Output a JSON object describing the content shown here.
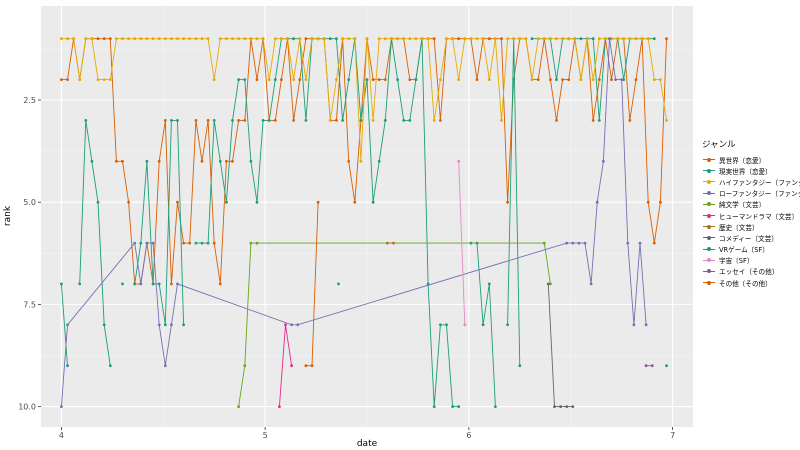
{
  "chart_data": {
    "type": "line",
    "xlabel": "date",
    "ylabel": "rank",
    "x_ticks": [
      "4",
      "5",
      "6",
      "7"
    ],
    "y_ticks": [
      "2.5",
      "5.0",
      "7.5",
      "10.0"
    ],
    "xlim": [
      3.9,
      7.1
    ],
    "ylim_reversed": [
      0.2,
      10.5
    ],
    "grid": true,
    "legend_position": "right",
    "legend_title": "ジャンル",
    "series": [
      {
        "name": "異世界〔恋愛〕",
        "color": "#D95F02",
        "x": [
          4.0,
          4.03,
          4.06,
          4.09,
          4.12,
          4.15,
          4.18,
          4.21,
          4.24,
          4.27,
          4.3,
          4.33,
          4.36,
          4.39,
          4.42,
          4.45,
          4.48,
          4.51,
          4.54,
          4.57,
          4.6,
          4.63,
          4.66,
          4.69,
          4.72,
          4.75,
          4.78,
          4.81,
          4.84,
          4.87,
          4.9,
          4.93,
          4.96,
          4.99,
          5.02,
          5.05,
          5.08,
          5.11,
          5.14,
          5.17,
          5.2,
          5.23,
          5.26,
          5.29,
          5.32,
          5.35,
          5.38,
          5.41,
          5.44,
          5.47,
          5.5,
          5.53,
          5.56,
          5.59,
          5.62,
          5.65,
          5.68,
          5.71,
          5.74,
          5.77,
          5.8,
          5.83,
          5.86,
          5.89,
          5.92,
          5.95,
          5.98,
          6.01,
          6.04,
          6.07,
          6.1,
          6.13,
          6.16,
          6.19,
          6.22,
          6.25,
          6.28,
          6.31,
          6.34,
          6.37,
          6.4,
          6.43,
          6.46,
          6.49,
          6.52,
          6.55,
          6.58,
          6.61,
          6.64,
          6.67,
          6.7,
          6.73,
          6.76,
          6.79,
          6.82,
          6.85,
          6.88,
          6.91,
          6.94,
          6.97
        ],
        "y": [
          2,
          2,
          1,
          2,
          1,
          1,
          1,
          1,
          1,
          4,
          4,
          5,
          7,
          7,
          6,
          7,
          4,
          3,
          7,
          5,
          6,
          6,
          3,
          4,
          3,
          6,
          7,
          4,
          4,
          3,
          3,
          1,
          2,
          1,
          3,
          3,
          2,
          1,
          3,
          2,
          1,
          1,
          1,
          1,
          3,
          3,
          1,
          4,
          5,
          3,
          1,
          2,
          2,
          2,
          1,
          1,
          1,
          2,
          2,
          1,
          1,
          1,
          3,
          1,
          1,
          1,
          1,
          1,
          2,
          1,
          1,
          1,
          1,
          5,
          2,
          1,
          1,
          2,
          2,
          1,
          2,
          3,
          2,
          2,
          1,
          2,
          1,
          3,
          2,
          1,
          2,
          1,
          1,
          3,
          2,
          1,
          5,
          6,
          5,
          1
        ]
      },
      {
        "name": "現実世界〔恋愛〕",
        "color": "#1B9E77",
        "x": [
          4.0,
          4.03,
          4.06,
          4.09,
          4.12,
          4.15,
          4.18,
          4.21,
          4.24,
          4.27,
          4.3,
          4.33,
          4.36,
          4.39,
          4.42,
          4.45,
          4.48,
          4.51,
          4.54,
          4.57,
          4.6,
          4.63,
          4.66,
          4.69,
          4.72,
          4.75,
          4.78,
          4.81,
          4.84,
          4.87,
          4.9,
          4.93,
          4.96,
          4.99,
          5.02,
          5.05,
          5.08,
          5.11,
          5.14,
          5.17,
          5.2,
          5.23,
          5.26,
          5.29,
          5.32,
          5.35,
          5.38,
          5.41,
          5.44,
          5.47,
          5.5,
          5.53,
          5.56,
          5.59,
          5.62,
          5.65,
          5.68,
          5.71,
          5.74,
          5.77,
          5.8,
          5.83,
          5.86,
          5.89,
          5.92,
          5.95,
          5.98,
          6.01,
          6.04,
          6.07,
          6.1,
          6.13,
          6.16,
          6.19,
          6.22,
          6.25,
          6.28,
          6.31,
          6.34,
          6.37,
          6.4,
          6.43,
          6.46,
          6.49,
          6.52,
          6.55,
          6.58,
          6.61,
          6.64,
          6.67,
          6.7,
          6.73,
          6.76,
          6.79,
          6.82,
          6.85,
          6.88,
          6.91,
          6.94,
          6.97
        ],
        "y": [
          7,
          9,
          null,
          7,
          3,
          4,
          5,
          8,
          9,
          null,
          7,
          null,
          7,
          6,
          4,
          7,
          7,
          8,
          3,
          3,
          8,
          null,
          6,
          6,
          6,
          3,
          4,
          5,
          3,
          2,
          2,
          4,
          5,
          3,
          3,
          2,
          1,
          1,
          1,
          1,
          3,
          1,
          1,
          1,
          1,
          1,
          3,
          2,
          1,
          3,
          2,
          5,
          4,
          3,
          1,
          2,
          3,
          3,
          2,
          1,
          7,
          10,
          8,
          8,
          10,
          10,
          null,
          6,
          6,
          8,
          7,
          10,
          null,
          8,
          1,
          9,
          null,
          1,
          1,
          1,
          1,
          2,
          1,
          1,
          1,
          1,
          1,
          1,
          3,
          1,
          1,
          1,
          2,
          1,
          1,
          1,
          1,
          1,
          null,
          9
        ]
      },
      {
        "name": "ハイファンタジー〔ファンタジー〕",
        "color": "#E6AB02",
        "x": [
          4.0,
          4.03,
          4.06,
          4.09,
          4.12,
          4.15,
          4.18,
          4.21,
          4.24,
          4.27,
          4.3,
          4.33,
          4.36,
          4.39,
          4.42,
          4.45,
          4.48,
          4.51,
          4.54,
          4.57,
          4.6,
          4.63,
          4.66,
          4.69,
          4.72,
          4.75,
          4.78,
          4.81,
          4.84,
          4.87,
          4.9,
          4.93,
          4.96,
          4.99,
          5.02,
          5.05,
          5.08,
          5.11,
          5.14,
          5.17,
          5.2,
          5.23,
          5.26,
          5.29,
          5.32,
          5.35,
          5.38,
          5.41,
          5.44,
          5.47,
          5.5,
          5.53,
          5.56,
          5.59,
          5.62,
          5.65,
          5.68,
          5.71,
          5.74,
          5.77,
          5.8,
          5.83,
          5.86,
          5.89,
          5.92,
          5.95,
          5.98,
          6.01,
          6.04,
          6.07,
          6.1,
          6.13,
          6.16,
          6.19,
          6.22,
          6.25,
          6.28,
          6.31,
          6.34,
          6.37,
          6.4,
          6.43,
          6.46,
          6.49,
          6.52,
          6.55,
          6.58,
          6.61,
          6.64,
          6.67,
          6.7,
          6.73,
          6.76,
          6.79,
          6.82,
          6.85,
          6.88,
          6.91,
          6.94,
          6.97
        ],
        "y": [
          1,
          1,
          1,
          2,
          1,
          1,
          2,
          2,
          2,
          1,
          1,
          1,
          1,
          1,
          1,
          1,
          1,
          1,
          1,
          1,
          1,
          1,
          1,
          1,
          1,
          2,
          1,
          1,
          1,
          1,
          1,
          1,
          1,
          1,
          2,
          1,
          1,
          1,
          2,
          1,
          2,
          1,
          1,
          1,
          3,
          2,
          1,
          1,
          1,
          4,
          1,
          3,
          1,
          1,
          1,
          1,
          1,
          1,
          1,
          1,
          1,
          3,
          2,
          1,
          1,
          2,
          1,
          1,
          1,
          1,
          2,
          1,
          3,
          1,
          1,
          1,
          1,
          2,
          1,
          1,
          1,
          1,
          1,
          1,
          1,
          2,
          1,
          2,
          1,
          1,
          1,
          1,
          1,
          1,
          1,
          1,
          1,
          2,
          2,
          3
        ]
      },
      {
        "name": "ローファンタジー〔ファンタジー〕",
        "color": "#7570B3",
        "x": [
          4.0,
          4.03,
          4.36,
          4.39,
          4.42,
          4.45,
          4.48,
          4.51,
          4.54,
          4.57,
          5.13,
          5.16,
          6.48,
          6.51,
          6.54,
          6.57,
          6.6,
          6.63,
          6.66,
          6.69,
          6.72,
          6.75,
          6.78,
          6.81,
          6.84,
          6.87
        ],
        "y": [
          10,
          8,
          6,
          7,
          6,
          6,
          8,
          9,
          8,
          7,
          8,
          8,
          6,
          6,
          6,
          6,
          7,
          5,
          4,
          1,
          2,
          2,
          6,
          8,
          6,
          8
        ]
      },
      {
        "name": "純文学〔文芸〕",
        "color": "#66A61E",
        "x": [
          4.87,
          4.9,
          4.93,
          4.96,
          6.37,
          6.4
        ],
        "y": [
          10,
          9,
          6,
          6,
          6,
          7
        ]
      },
      {
        "name": "ヒューマンドラマ〔文芸〕",
        "color": "#E7298A",
        "x": [
          5.07,
          5.1,
          5.13
        ],
        "y": [
          10,
          8,
          9
        ]
      },
      {
        "name": "歴史〔文芸〕",
        "color": "#A6761D",
        "x": [
          5.6,
          5.63
        ],
        "y": [
          6,
          6
        ]
      },
      {
        "name": "コメディー〔文芸〕",
        "color": "#666666",
        "x": [
          6.39,
          6.42,
          6.45,
          6.48,
          6.51
        ],
        "y": [
          7,
          10,
          10,
          10,
          10
        ]
      },
      {
        "name": "VRゲーム〔SF〕",
        "color": "#1B9E77",
        "x": [
          5.36
        ],
        "y": [
          7
        ]
      },
      {
        "name": "宇宙〔SF〕",
        "color": "#E78AC3",
        "x": [
          5.95,
          5.98
        ],
        "y": [
          4,
          8
        ]
      },
      {
        "name": "エッセイ〔その他〕",
        "color": "#984EA3",
        "x": [
          6.87,
          6.9
        ],
        "y": [
          9,
          9
        ]
      },
      {
        "name": "その他〔その他〕",
        "color": "#D95F02",
        "x": [
          5.2,
          5.23,
          5.26
        ],
        "y": [
          9,
          9,
          5
        ]
      }
    ]
  }
}
